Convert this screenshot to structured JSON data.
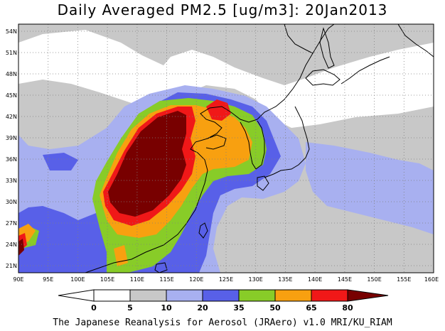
{
  "title": "Daily Averaged PM2.5 [ug/m3]: 20Jan2013",
  "footer": "The Japanese Reanalysis for Aerosol (JRAero) v1.0 MRI/KU_RIAM",
  "map": {
    "lon_range": [
      90,
      160
    ],
    "lat_range": [
      20,
      55
    ],
    "lon_ticks": [
      "90E",
      "95E",
      "100E",
      "105E",
      "110E",
      "115E",
      "120E",
      "125E",
      "130E",
      "135E",
      "140E",
      "145E",
      "150E",
      "155E",
      "160E"
    ],
    "lat_ticks": [
      "21N",
      "24N",
      "27N",
      "30N",
      "33N",
      "36N",
      "39N",
      "42N",
      "45N",
      "48N",
      "51N",
      "54N"
    ],
    "gridlines": "dotted"
  },
  "colorbar": {
    "levels": [
      "0",
      "5",
      "10",
      "20",
      "35",
      "50",
      "65",
      "80"
    ],
    "colors": [
      "#ffffff",
      "#c8c8c8",
      "#a8b0f0",
      "#5860e8",
      "#88cc28",
      "#f8a010",
      "#f01818",
      "#780000"
    ]
  }
}
